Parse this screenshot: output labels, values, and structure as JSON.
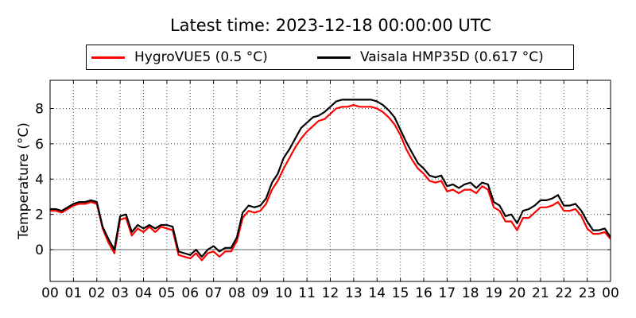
{
  "title": "Latest time: 2023-12-18 00:00:00 UTC",
  "chart_data": {
    "type": "line",
    "title": "Latest time: 2023-12-18 00:00:00 UTC",
    "xlabel": "",
    "ylabel": "Temperature (°C)",
    "xlim": [
      0,
      24
    ],
    "ylim": [
      -1.8,
      9.6
    ],
    "x_ticks": [
      "00",
      "01",
      "02",
      "03",
      "04",
      "05",
      "06",
      "07",
      "08",
      "09",
      "10",
      "11",
      "12",
      "13",
      "14",
      "15",
      "16",
      "17",
      "18",
      "19",
      "20",
      "21",
      "22",
      "23",
      "00"
    ],
    "y_ticks": [
      0,
      2,
      4,
      6,
      8
    ],
    "grid": true,
    "legend_position": "top",
    "x": [
      0,
      0.25,
      0.5,
      0.75,
      1,
      1.25,
      1.5,
      1.75,
      2,
      2.25,
      2.5,
      2.75,
      3,
      3.25,
      3.5,
      3.75,
      4,
      4.25,
      4.5,
      4.75,
      5,
      5.25,
      5.5,
      5.75,
      6,
      6.25,
      6.5,
      6.75,
      7,
      7.25,
      7.5,
      7.75,
      8,
      8.25,
      8.5,
      8.75,
      9,
      9.25,
      9.5,
      9.75,
      10,
      10.25,
      10.5,
      10.75,
      11,
      11.25,
      11.5,
      11.75,
      12,
      12.25,
      12.5,
      12.75,
      13,
      13.25,
      13.5,
      13.75,
      14,
      14.25,
      14.5,
      14.75,
      15,
      15.25,
      15.5,
      15.75,
      16,
      16.25,
      16.5,
      16.75,
      17,
      17.25,
      17.5,
      17.75,
      18,
      18.25,
      18.5,
      18.75,
      19,
      19.25,
      19.5,
      19.75,
      20,
      20.25,
      20.5,
      20.75,
      21,
      21.25,
      21.5,
      21.75,
      22,
      22.25,
      22.5,
      22.75,
      23,
      23.25,
      23.5,
      23.75,
      24
    ],
    "series": [
      {
        "name": "HygroVUE5 (0.5 °C)",
        "color": "#ff0000",
        "values": [
          2.2,
          2.2,
          2.1,
          2.3,
          2.5,
          2.6,
          2.6,
          2.7,
          2.6,
          1.2,
          0.4,
          -0.2,
          1.7,
          1.8,
          0.8,
          1.2,
          1.0,
          1.3,
          1.0,
          1.3,
          1.2,
          1.1,
          -0.3,
          -0.4,
          -0.5,
          -0.2,
          -0.6,
          -0.2,
          -0.1,
          -0.4,
          -0.1,
          -0.1,
          0.5,
          1.8,
          2.2,
          2.1,
          2.2,
          2.6,
          3.4,
          3.9,
          4.6,
          5.2,
          5.8,
          6.3,
          6.7,
          7.0,
          7.3,
          7.4,
          7.7,
          8.0,
          8.1,
          8.1,
          8.2,
          8.1,
          8.1,
          8.1,
          8.0,
          7.8,
          7.5,
          7.1,
          6.5,
          5.7,
          5.1,
          4.6,
          4.3,
          3.9,
          3.8,
          3.9,
          3.3,
          3.4,
          3.2,
          3.4,
          3.4,
          3.2,
          3.6,
          3.4,
          2.4,
          2.2,
          1.6,
          1.6,
          1.1,
          1.8,
          1.8,
          2.1,
          2.4,
          2.4,
          2.5,
          2.7,
          2.2,
          2.2,
          2.3,
          1.9,
          1.2,
          0.9,
          0.9,
          1.0,
          0.6
        ]
      },
      {
        "name": "Vaisala HMP35D (0.617 °C)",
        "color": "#000000",
        "values": [
          2.3,
          2.3,
          2.2,
          2.4,
          2.6,
          2.7,
          2.7,
          2.8,
          2.7,
          1.3,
          0.6,
          0.0,
          1.9,
          2.0,
          1.0,
          1.4,
          1.2,
          1.4,
          1.2,
          1.4,
          1.4,
          1.3,
          -0.1,
          -0.2,
          -0.3,
          0.0,
          -0.4,
          0.0,
          0.2,
          -0.1,
          0.1,
          0.1,
          0.7,
          2.1,
          2.5,
          2.4,
          2.5,
          2.9,
          3.8,
          4.3,
          5.2,
          5.7,
          6.3,
          6.9,
          7.2,
          7.5,
          7.6,
          7.8,
          8.1,
          8.4,
          8.5,
          8.5,
          8.5,
          8.5,
          8.5,
          8.5,
          8.4,
          8.2,
          7.9,
          7.5,
          6.8,
          6.1,
          5.5,
          4.9,
          4.6,
          4.2,
          4.1,
          4.2,
          3.6,
          3.7,
          3.5,
          3.7,
          3.8,
          3.5,
          3.8,
          3.7,
          2.7,
          2.5,
          1.9,
          2.0,
          1.5,
          2.2,
          2.3,
          2.5,
          2.8,
          2.8,
          2.9,
          3.1,
          2.5,
          2.5,
          2.6,
          2.2,
          1.6,
          1.1,
          1.1,
          1.2,
          0.7
        ]
      }
    ]
  }
}
